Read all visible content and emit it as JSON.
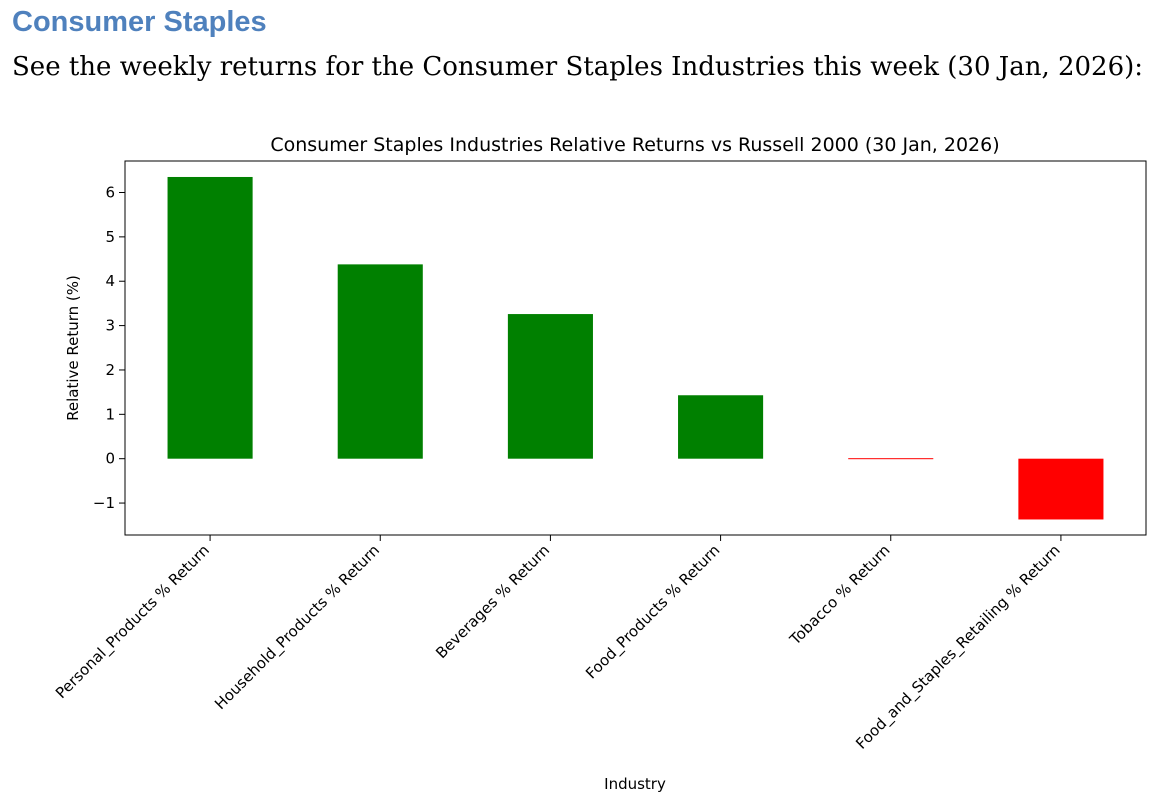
{
  "document": {
    "heading": "Consumer Staples",
    "intro": "See the weekly returns for the Consumer Staples Industries this week (30 Jan, 2026):"
  },
  "chart_data": {
    "type": "bar",
    "title": "Consumer Staples Industries Relative Returns vs Russell 2000 (30 Jan, 2026)",
    "xlabel": "Industry",
    "ylabel": "Relative Return (%)",
    "categories": [
      "Personal_Products % Return",
      "Household_Products % Return",
      "Beverages % Return",
      "Food_Products % Return",
      "Tobacco % Return",
      "Food_and_Staples_Retailing % Return"
    ],
    "values": [
      6.35,
      4.38,
      3.26,
      1.43,
      -0.01,
      -1.37
    ],
    "bar_colors": [
      "#008000",
      "#008000",
      "#008000",
      "#008000",
      "#ff0000",
      "#ff0000"
    ],
    "yticks": [
      -1,
      0,
      1,
      2,
      3,
      4,
      5,
      6
    ],
    "ytick_labels": [
      "−1",
      "0",
      "1",
      "2",
      "3",
      "4",
      "5",
      "6"
    ],
    "ylim": [
      -1.72,
      6.71
    ],
    "grid": false,
    "legend": "none"
  }
}
